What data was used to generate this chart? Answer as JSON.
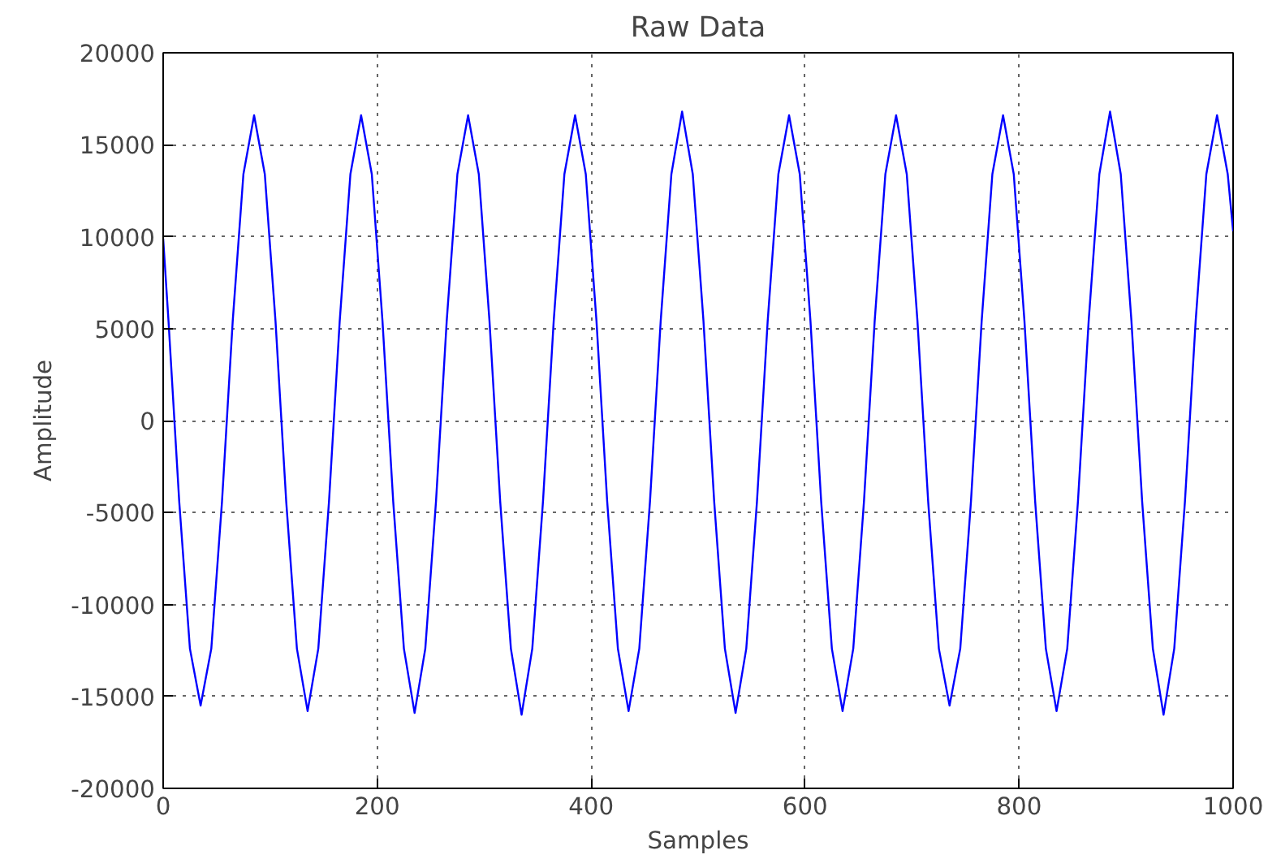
{
  "chart_data": {
    "type": "line",
    "title": "Raw Data",
    "xlabel": "Samples",
    "ylabel": "Amplitude",
    "x": [
      0,
      5,
      15,
      25,
      35,
      45,
      55,
      65,
      75,
      85,
      95,
      105,
      115,
      125,
      135,
      145,
      155,
      165,
      175,
      185,
      195,
      205,
      215,
      225,
      235,
      245,
      255,
      265,
      275,
      285,
      295,
      305,
      315,
      325,
      335,
      345,
      355,
      365,
      375,
      385,
      395,
      405,
      415,
      425,
      435,
      445,
      455,
      465,
      475,
      485,
      495,
      505,
      515,
      525,
      535,
      545,
      555,
      565,
      575,
      585,
      595,
      605,
      615,
      625,
      635,
      645,
      655,
      665,
      675,
      685,
      695,
      705,
      715,
      725,
      735,
      745,
      755,
      765,
      775,
      785,
      795,
      805,
      815,
      825,
      835,
      845,
      855,
      865,
      875,
      885,
      895,
      905,
      915,
      925,
      935,
      945,
      955,
      965,
      975,
      985,
      995,
      1000
    ],
    "series": [
      {
        "color": "#0000ff",
        "values": [
          9900,
          5400,
          -4400,
          -12400,
          -15500,
          -12400,
          -4400,
          5400,
          13400,
          16600,
          13400,
          5400,
          -4400,
          -12400,
          -15800,
          -12400,
          -4400,
          5400,
          13400,
          16600,
          13400,
          5400,
          -4400,
          -12400,
          -15900,
          -12400,
          -4400,
          5400,
          13400,
          16600,
          13400,
          5400,
          -4400,
          -12400,
          -16000,
          -12400,
          -4400,
          5400,
          13400,
          16600,
          13400,
          5400,
          -4400,
          -12400,
          -15800,
          -12400,
          -4400,
          5400,
          13400,
          16800,
          13400,
          5400,
          -4400,
          -12400,
          -15900,
          -12400,
          -4400,
          5400,
          13400,
          16600,
          13400,
          5400,
          -4400,
          -12400,
          -15800,
          -12400,
          -4400,
          5400,
          13400,
          16600,
          13400,
          5400,
          -4400,
          -12400,
          -15500,
          -12400,
          -4400,
          5400,
          13400,
          16600,
          13400,
          5400,
          -4400,
          -12400,
          -15800,
          -12400,
          -4400,
          5400,
          13400,
          16800,
          13400,
          5400,
          -4400,
          -12400,
          -16000,
          -12400,
          -4400,
          5400,
          13400,
          16600,
          13400,
          10300
        ]
      }
    ],
    "xlim": [
      0,
      1000
    ],
    "ylim": [
      -20000,
      20000
    ],
    "xticks": [
      0,
      200,
      400,
      600,
      800,
      1000
    ],
    "yticks": [
      -20000,
      -15000,
      -10000,
      -5000,
      0,
      5000,
      10000,
      15000,
      20000
    ],
    "grid": true,
    "marker": "none",
    "line_style": "solid"
  }
}
